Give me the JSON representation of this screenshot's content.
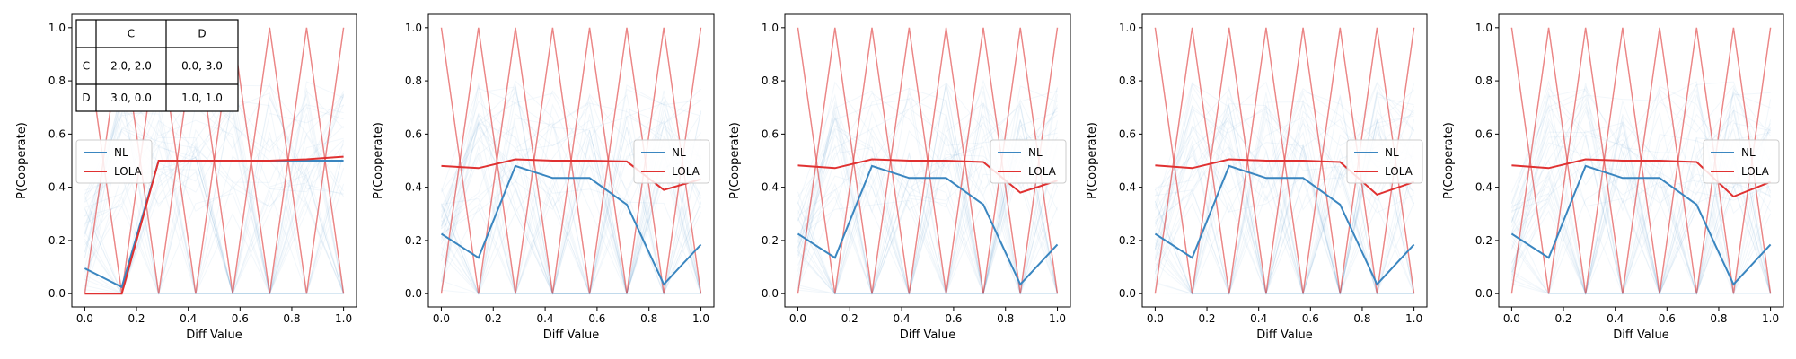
{
  "chart_data": [
    {
      "type": "line",
      "xlabel": "Diff Value",
      "ylabel": "P(Cooperate)",
      "xlim": [
        -0.05,
        1.05
      ],
      "ylim": [
        -0.05,
        1.05
      ],
      "xticks": [
        "0.0",
        "0.2",
        "0.4",
        "0.6",
        "0.8",
        "1.0"
      ],
      "yticks": [
        "0.0",
        "0.2",
        "0.4",
        "0.6",
        "0.8",
        "1.0"
      ],
      "x": [
        0.0,
        0.1429,
        0.2857,
        0.4286,
        0.5714,
        0.7143,
        0.8571,
        1.0
      ],
      "legend_position": "center-left",
      "series": [
        {
          "name": "NL",
          "color": "#3a86c0",
          "values": [
            0.095,
            0.025,
            0.5,
            0.5,
            0.5,
            0.5,
            0.5,
            0.5
          ]
        },
        {
          "name": "LOLA",
          "color": "#e03131",
          "values": [
            0.0,
            0.0,
            0.5,
            0.5,
            0.5,
            0.5,
            0.505,
            0.515
          ]
        }
      ],
      "payoff_table": {
        "col_headers": [
          "",
          "C",
          "D"
        ],
        "rows": [
          {
            "label": "C",
            "cells": [
              "2.0, 2.0",
              "0.0, 3.0"
            ]
          },
          {
            "label": "D",
            "cells": [
              "3.0, 0.0",
              "1.0, 1.0"
            ]
          }
        ]
      }
    },
    {
      "type": "line",
      "xlabel": "Diff Value",
      "ylabel": "P(Cooperate)",
      "xlim": [
        -0.05,
        1.05
      ],
      "ylim": [
        -0.05,
        1.05
      ],
      "xticks": [
        "0.0",
        "0.2",
        "0.4",
        "0.6",
        "0.8",
        "1.0"
      ],
      "yticks": [
        "0.0",
        "0.2",
        "0.4",
        "0.6",
        "0.8",
        "1.0"
      ],
      "x": [
        0.0,
        0.1429,
        0.2857,
        0.4286,
        0.5714,
        0.7143,
        0.8571,
        1.0
      ],
      "legend_position": "center-right",
      "series": [
        {
          "name": "NL",
          "color": "#3a86c0",
          "values": [
            0.225,
            0.135,
            0.48,
            0.435,
            0.435,
            0.335,
            0.035,
            0.185
          ]
        },
        {
          "name": "LOLA",
          "color": "#e03131",
          "values": [
            0.48,
            0.472,
            0.505,
            0.5,
            0.5,
            0.497,
            0.39,
            0.43
          ]
        }
      ]
    },
    {
      "type": "line",
      "xlabel": "Diff Value",
      "ylabel": "P(Cooperate)",
      "xlim": [
        -0.05,
        1.05
      ],
      "ylim": [
        -0.05,
        1.05
      ],
      "xticks": [
        "0.0",
        "0.2",
        "0.4",
        "0.6",
        "0.8",
        "1.0"
      ],
      "yticks": [
        "0.0",
        "0.2",
        "0.4",
        "0.6",
        "0.8",
        "1.0"
      ],
      "x": [
        0.0,
        0.1429,
        0.2857,
        0.4286,
        0.5714,
        0.7143,
        0.8571,
        1.0
      ],
      "legend_position": "center-right",
      "series": [
        {
          "name": "NL",
          "color": "#3a86c0",
          "values": [
            0.225,
            0.135,
            0.48,
            0.435,
            0.435,
            0.335,
            0.035,
            0.185
          ]
        },
        {
          "name": "LOLA",
          "color": "#e03131",
          "values": [
            0.482,
            0.472,
            0.505,
            0.5,
            0.5,
            0.495,
            0.38,
            0.425
          ]
        }
      ]
    },
    {
      "type": "line",
      "xlabel": "Diff Value",
      "ylabel": "P(Cooperate)",
      "xlim": [
        -0.05,
        1.05
      ],
      "ylim": [
        -0.05,
        1.05
      ],
      "xticks": [
        "0.0",
        "0.2",
        "0.4",
        "0.6",
        "0.8",
        "1.0"
      ],
      "yticks": [
        "0.0",
        "0.2",
        "0.4",
        "0.6",
        "0.8",
        "1.0"
      ],
      "x": [
        0.0,
        0.1429,
        0.2857,
        0.4286,
        0.5714,
        0.7143,
        0.8571,
        1.0
      ],
      "legend_position": "center-right",
      "series": [
        {
          "name": "NL",
          "color": "#3a86c0",
          "values": [
            0.225,
            0.135,
            0.48,
            0.435,
            0.435,
            0.335,
            0.035,
            0.185
          ]
        },
        {
          "name": "LOLA",
          "color": "#e03131",
          "values": [
            0.482,
            0.472,
            0.505,
            0.5,
            0.5,
            0.495,
            0.372,
            0.42
          ]
        }
      ]
    },
    {
      "type": "line",
      "xlabel": "Diff Value",
      "ylabel": "P(Cooperate)",
      "xlim": [
        -0.05,
        1.05
      ],
      "ylim": [
        -0.05,
        1.05
      ],
      "xticks": [
        "0.0",
        "0.2",
        "0.4",
        "0.6",
        "0.8",
        "1.0"
      ],
      "yticks": [
        "0.0",
        "0.2",
        "0.4",
        "0.6",
        "0.8",
        "1.0"
      ],
      "x": [
        0.0,
        0.1429,
        0.2857,
        0.4286,
        0.5714,
        0.7143,
        0.8571,
        1.0
      ],
      "legend_position": "center-right",
      "series": [
        {
          "name": "NL",
          "color": "#3a86c0",
          "values": [
            0.225,
            0.135,
            0.48,
            0.435,
            0.435,
            0.335,
            0.035,
            0.185
          ]
        },
        {
          "name": "LOLA",
          "color": "#e03131",
          "values": [
            0.482,
            0.472,
            0.505,
            0.5,
            0.5,
            0.495,
            0.365,
            0.42
          ]
        }
      ]
    }
  ]
}
